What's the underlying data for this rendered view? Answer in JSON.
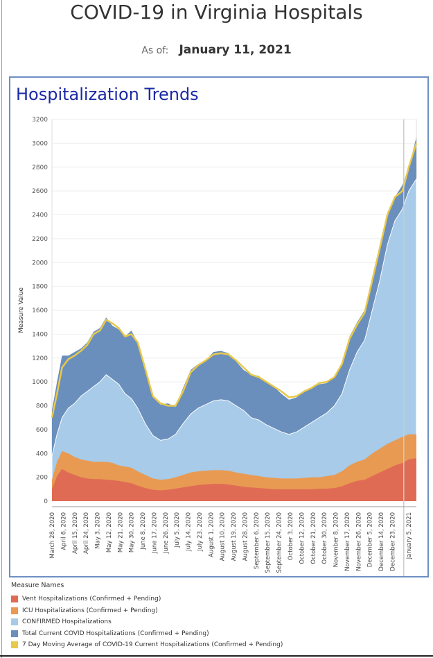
{
  "page": {
    "title": "COVID-19 in Virginia Hospitals",
    "as_of_label": "As of:",
    "as_of_date": "January 11, 2021"
  },
  "panel": {
    "title": "Hospitalization Trends"
  },
  "legend": {
    "title": "Measure Names",
    "items": [
      {
        "label": "Vent Hospitalizations (Confirmed + Pending)",
        "color": "#e06b54"
      },
      {
        "label": "ICU Hospitalizations (Confirmed + Pending)",
        "color": "#e89a52"
      },
      {
        "label": "CONFIRMED Hospitalizations",
        "color": "#a7cbe8"
      },
      {
        "label": "Total Current COVID Hospitalizations (Confirmed + Pending)",
        "color": "#6b8fbd"
      },
      {
        "label": "7 Day Moving Average of COVID-19 Current Hospitalizations (Confirmed + Pending)",
        "color": "#e8c94a"
      }
    ]
  },
  "chart_data": {
    "type": "area",
    "ylabel": "Measure Value",
    "ylim": [
      0,
      3200
    ],
    "yticks": [
      0,
      200,
      400,
      600,
      800,
      1000,
      1200,
      1400,
      1600,
      1800,
      2000,
      2200,
      2400,
      2600,
      2800,
      3000,
      3200
    ],
    "x_start": "2020-03-28",
    "x_end": "2021-01-11",
    "xtick_labels": [
      {
        "date": "2020-03-28",
        "label": "March 28, 2020"
      },
      {
        "date": "2020-04-06",
        "label": "April 6, 2020"
      },
      {
        "date": "2020-04-15",
        "label": "April 15, 2020"
      },
      {
        "date": "2020-04-24",
        "label": "April 24, 2020"
      },
      {
        "date": "2020-05-03",
        "label": "May 3, 2020"
      },
      {
        "date": "2020-05-12",
        "label": "May 12, 2020"
      },
      {
        "date": "2020-05-21",
        "label": "May 21, 2020"
      },
      {
        "date": "2020-05-30",
        "label": "May 30, 2020"
      },
      {
        "date": "2020-06-08",
        "label": "June 8, 2020"
      },
      {
        "date": "2020-06-17",
        "label": "June 17, 2020"
      },
      {
        "date": "2020-06-26",
        "label": "June 26, 2020"
      },
      {
        "date": "2020-07-05",
        "label": "July 5, 2020"
      },
      {
        "date": "2020-07-14",
        "label": "July 14, 2020"
      },
      {
        "date": "2020-07-23",
        "label": "July 23, 2020"
      },
      {
        "date": "2020-08-01",
        "label": "August 1, 2020"
      },
      {
        "date": "2020-08-10",
        "label": "August 10, 2020"
      },
      {
        "date": "2020-08-19",
        "label": "August 19, 2020"
      },
      {
        "date": "2020-08-28",
        "label": "August 28, 2020"
      },
      {
        "date": "2020-09-06",
        "label": "September 6, 2020"
      },
      {
        "date": "2020-09-15",
        "label": "September 15, 2020"
      },
      {
        "date": "2020-09-24",
        "label": "September 24, 2020"
      },
      {
        "date": "2020-10-03",
        "label": "October 3, 2020"
      },
      {
        "date": "2020-10-12",
        "label": "October 12, 2020"
      },
      {
        "date": "2020-10-21",
        "label": "October 21, 2020"
      },
      {
        "date": "2020-10-30",
        "label": "October 30, 2020"
      },
      {
        "date": "2020-11-08",
        "label": "November 8, 2020"
      },
      {
        "date": "2020-11-17",
        "label": "November 17, 2020"
      },
      {
        "date": "2020-11-26",
        "label": "November 26, 2020"
      },
      {
        "date": "2020-12-05",
        "label": "December 5, 2020"
      },
      {
        "date": "2020-12-14",
        "label": "December 14, 2020"
      },
      {
        "date": "2020-12-23",
        "label": "December 23, 2020"
      },
      {
        "date": "2021-01-05",
        "label": "January 5, 2021"
      }
    ],
    "series": [
      {
        "name": "Total Current COVID Hospitalizations (Confirmed + Pending)",
        "color": "#6b8fbd",
        "x": [
          "2020-03-28",
          "2020-04-01",
          "2020-04-05",
          "2020-04-10",
          "2020-04-15",
          "2020-04-20",
          "2020-04-25",
          "2020-04-30",
          "2020-05-05",
          "2020-05-10",
          "2020-05-15",
          "2020-05-20",
          "2020-05-25",
          "2020-05-30",
          "2020-06-04",
          "2020-06-10",
          "2020-06-16",
          "2020-06-22",
          "2020-06-28",
          "2020-07-04",
          "2020-07-10",
          "2020-07-16",
          "2020-07-22",
          "2020-07-28",
          "2020-08-03",
          "2020-08-09",
          "2020-08-15",
          "2020-08-21",
          "2020-08-27",
          "2020-09-02",
          "2020-09-08",
          "2020-09-14",
          "2020-09-20",
          "2020-09-26",
          "2020-10-02",
          "2020-10-08",
          "2020-10-14",
          "2020-10-20",
          "2020-10-26",
          "2020-11-01",
          "2020-11-07",
          "2020-11-13",
          "2020-11-19",
          "2020-11-25",
          "2020-12-01",
          "2020-12-07",
          "2020-12-13",
          "2020-12-19",
          "2020-12-25",
          "2020-12-31",
          "2021-01-05",
          "2021-01-11"
        ],
        "values": [
          760,
          1000,
          1220,
          1220,
          1250,
          1280,
          1330,
          1420,
          1450,
          1540,
          1470,
          1440,
          1380,
          1430,
          1330,
          1100,
          870,
          810,
          820,
          790,
          950,
          1100,
          1150,
          1180,
          1250,
          1260,
          1240,
          1170,
          1100,
          1060,
          1050,
          1000,
          960,
          900,
          850,
          870,
          920,
          950,
          980,
          990,
          1050,
          1150,
          1380,
          1500,
          1600,
          1880,
          2150,
          2420,
          2550,
          2650,
          2800,
          3050
        ]
      },
      {
        "name": "CONFIRMED Hospitalizations",
        "color": "#a7cbe8",
        "x": [
          "2020-03-28",
          "2020-04-01",
          "2020-04-05",
          "2020-04-10",
          "2020-04-15",
          "2020-04-20",
          "2020-04-25",
          "2020-04-30",
          "2020-05-05",
          "2020-05-10",
          "2020-05-15",
          "2020-05-20",
          "2020-05-25",
          "2020-05-30",
          "2020-06-04",
          "2020-06-10",
          "2020-06-16",
          "2020-06-22",
          "2020-06-28",
          "2020-07-04",
          "2020-07-10",
          "2020-07-16",
          "2020-07-22",
          "2020-07-28",
          "2020-08-03",
          "2020-08-09",
          "2020-08-15",
          "2020-08-21",
          "2020-08-27",
          "2020-09-02",
          "2020-09-08",
          "2020-09-14",
          "2020-09-20",
          "2020-09-26",
          "2020-10-02",
          "2020-10-08",
          "2020-10-14",
          "2020-10-20",
          "2020-10-26",
          "2020-11-01",
          "2020-11-07",
          "2020-11-13",
          "2020-11-19",
          "2020-11-25",
          "2020-12-01",
          "2020-12-07",
          "2020-12-13",
          "2020-12-19",
          "2020-12-25",
          "2020-12-31",
          "2021-01-05",
          "2021-01-11"
        ],
        "values": [
          380,
          560,
          700,
          780,
          820,
          880,
          920,
          960,
          1000,
          1060,
          1020,
          980,
          900,
          860,
          780,
          650,
          550,
          510,
          520,
          560,
          650,
          730,
          780,
          810,
          840,
          850,
          840,
          800,
          760,
          700,
          680,
          640,
          610,
          580,
          560,
          580,
          620,
          660,
          700,
          740,
          800,
          900,
          1100,
          1250,
          1350,
          1600,
          1850,
          2150,
          2350,
          2450,
          2600,
          2700
        ]
      },
      {
        "name": "ICU Hospitalizations (Confirmed + Pending)",
        "color": "#e89a52",
        "x": [
          "2020-03-28",
          "2020-04-01",
          "2020-04-05",
          "2020-04-10",
          "2020-04-15",
          "2020-04-20",
          "2020-04-25",
          "2020-04-30",
          "2020-05-05",
          "2020-05-10",
          "2020-05-15",
          "2020-05-20",
          "2020-05-25",
          "2020-05-30",
          "2020-06-04",
          "2020-06-10",
          "2020-06-16",
          "2020-06-22",
          "2020-06-28",
          "2020-07-04",
          "2020-07-10",
          "2020-07-16",
          "2020-07-22",
          "2020-07-28",
          "2020-08-03",
          "2020-08-09",
          "2020-08-15",
          "2020-08-21",
          "2020-08-27",
          "2020-09-02",
          "2020-09-08",
          "2020-09-14",
          "2020-09-20",
          "2020-09-26",
          "2020-10-02",
          "2020-10-08",
          "2020-10-14",
          "2020-10-20",
          "2020-10-26",
          "2020-11-01",
          "2020-11-07",
          "2020-11-13",
          "2020-11-19",
          "2020-11-25",
          "2020-12-01",
          "2020-12-07",
          "2020-12-13",
          "2020-12-19",
          "2020-12-25",
          "2020-12-31",
          "2021-01-05",
          "2021-01-11"
        ],
        "values": [
          180,
          330,
          420,
          400,
          370,
          350,
          340,
          330,
          330,
          330,
          320,
          300,
          290,
          280,
          250,
          220,
          190,
          180,
          185,
          200,
          220,
          240,
          250,
          255,
          260,
          260,
          255,
          240,
          230,
          220,
          210,
          200,
          195,
          190,
          190,
          190,
          195,
          200,
          200,
          210,
          220,
          250,
          300,
          330,
          350,
          400,
          440,
          480,
          510,
          540,
          560,
          560
        ]
      },
      {
        "name": "Vent Hospitalizations (Confirmed + Pending)",
        "color": "#e06b54",
        "x": [
          "2020-03-28",
          "2020-04-01",
          "2020-04-05",
          "2020-04-10",
          "2020-04-15",
          "2020-04-20",
          "2020-04-25",
          "2020-04-30",
          "2020-05-05",
          "2020-05-10",
          "2020-05-15",
          "2020-05-20",
          "2020-05-25",
          "2020-05-30",
          "2020-06-04",
          "2020-06-10",
          "2020-06-16",
          "2020-06-22",
          "2020-06-28",
          "2020-07-04",
          "2020-07-10",
          "2020-07-16",
          "2020-07-22",
          "2020-07-28",
          "2020-08-03",
          "2020-08-09",
          "2020-08-15",
          "2020-08-21",
          "2020-08-27",
          "2020-09-02",
          "2020-09-08",
          "2020-09-14",
          "2020-09-20",
          "2020-09-26",
          "2020-10-02",
          "2020-10-08",
          "2020-10-14",
          "2020-10-20",
          "2020-10-26",
          "2020-11-01",
          "2020-11-07",
          "2020-11-13",
          "2020-11-19",
          "2020-11-25",
          "2020-12-01",
          "2020-12-07",
          "2020-12-13",
          "2020-12-19",
          "2020-12-25",
          "2020-12-31",
          "2021-01-05",
          "2021-01-11"
        ],
        "values": [
          100,
          210,
          270,
          240,
          220,
          200,
          190,
          185,
          185,
          180,
          175,
          170,
          160,
          150,
          130,
          110,
          95,
          90,
          95,
          105,
          115,
          125,
          135,
          140,
          145,
          145,
          140,
          130,
          120,
          115,
          110,
          105,
          100,
          100,
          100,
          100,
          100,
          100,
          105,
          105,
          110,
          125,
          150,
          170,
          180,
          210,
          240,
          270,
          300,
          320,
          350,
          360
        ]
      },
      {
        "name": "7 Day Moving Average of COVID-19 Current Hospitalizations (Confirmed + Pending)",
        "color": "#e8c94a",
        "x": [
          "2020-03-28",
          "2020-04-01",
          "2020-04-05",
          "2020-04-10",
          "2020-04-15",
          "2020-04-20",
          "2020-04-25",
          "2020-04-30",
          "2020-05-05",
          "2020-05-10",
          "2020-05-15",
          "2020-05-20",
          "2020-05-25",
          "2020-05-30",
          "2020-06-04",
          "2020-06-10",
          "2020-06-16",
          "2020-06-22",
          "2020-06-28",
          "2020-07-04",
          "2020-07-10",
          "2020-07-16",
          "2020-07-22",
          "2020-07-28",
          "2020-08-03",
          "2020-08-09",
          "2020-08-15",
          "2020-08-21",
          "2020-08-27",
          "2020-09-02",
          "2020-09-08",
          "2020-09-14",
          "2020-09-20",
          "2020-09-26",
          "2020-10-02",
          "2020-10-08",
          "2020-10-14",
          "2020-10-20",
          "2020-10-26",
          "2020-11-01",
          "2020-11-07",
          "2020-11-13",
          "2020-11-19",
          "2020-11-25",
          "2020-12-01",
          "2020-12-07",
          "2020-12-13",
          "2020-12-19",
          "2020-12-25",
          "2020-12-31",
          "2021-01-05",
          "2021-01-11"
        ],
        "values": [
          700,
          900,
          1120,
          1190,
          1220,
          1260,
          1310,
          1400,
          1430,
          1520,
          1490,
          1450,
          1380,
          1400,
          1330,
          1110,
          880,
          820,
          800,
          800,
          920,
          1080,
          1140,
          1180,
          1230,
          1240,
          1230,
          1180,
          1120,
          1060,
          1040,
          1000,
          960,
          920,
          870,
          880,
          920,
          950,
          990,
          1000,
          1040,
          1150,
          1360,
          1480,
          1580,
          1850,
          2120,
          2400,
          2550,
          2600,
          2800,
          3000
        ]
      }
    ]
  }
}
